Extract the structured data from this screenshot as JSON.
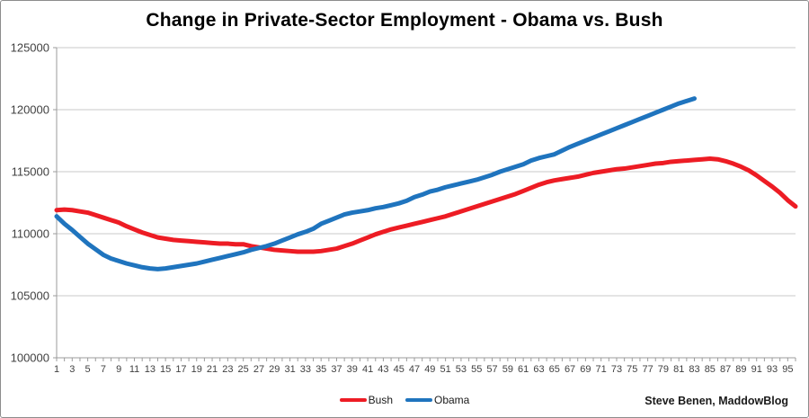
{
  "attribution": {
    "text": "Steve Benen, MaddowBlog"
  },
  "chart_data": {
    "type": "line",
    "title": "Change in Private-Sector Employment - Obama vs. Bush",
    "xlabel": "",
    "ylabel": "",
    "x_unit": "month of presidency",
    "x_tick_labels": [
      1,
      3,
      5,
      7,
      9,
      11,
      13,
      15,
      17,
      19,
      21,
      23,
      25,
      27,
      29,
      31,
      33,
      35,
      37,
      39,
      41,
      43,
      45,
      47,
      49,
      51,
      53,
      55,
      57,
      59,
      61,
      63,
      65,
      67,
      69,
      71,
      73,
      75,
      77,
      79,
      81,
      83,
      85,
      87,
      89,
      91,
      93,
      95
    ],
    "x_months_total": 96,
    "ylim": [
      100000,
      125000
    ],
    "y_ticks": [
      100000,
      105000,
      110000,
      115000,
      120000,
      125000
    ],
    "grid": true,
    "legend_position": "bottom",
    "colors": {
      "bush": "#ED1C24",
      "obama": "#1F74BE",
      "gridline": "#c9c9c9",
      "axis": "#9b9b9b",
      "tick_label": "#404040"
    },
    "legend": [
      {
        "label": "Bush",
        "color": "#ED1C24"
      },
      {
        "label": "Obama",
        "color": "#1F74BE"
      }
    ],
    "series": [
      {
        "name": "Bush",
        "color": "#ED1C24",
        "start_month": 1,
        "values": [
          111900,
          111950,
          111900,
          111800,
          111700,
          111500,
          111300,
          111100,
          110900,
          110600,
          110350,
          110100,
          109900,
          109700,
          109600,
          109500,
          109450,
          109400,
          109350,
          109300,
          109250,
          109200,
          109200,
          109150,
          109150,
          109000,
          108900,
          108800,
          108700,
          108650,
          108600,
          108550,
          108550,
          108550,
          108600,
          108700,
          108800,
          109000,
          109200,
          109450,
          109700,
          109950,
          110150,
          110350,
          110500,
          110650,
          110800,
          110950,
          111100,
          111250,
          111400,
          111600,
          111800,
          112000,
          112200,
          112400,
          112600,
          112800,
          113000,
          113200,
          113450,
          113700,
          113950,
          114150,
          114300,
          114400,
          114500,
          114600,
          114750,
          114900,
          115000,
          115100,
          115200,
          115250,
          115350,
          115450,
          115550,
          115650,
          115700,
          115800,
          115850,
          115900,
          115950,
          116000,
          116050,
          116000,
          115850,
          115650,
          115400,
          115100,
          114700,
          114250,
          113800,
          113300,
          112700,
          112200
        ]
      },
      {
        "name": "Obama",
        "color": "#1F74BE",
        "start_month": 1,
        "values": [
          111400,
          110800,
          110300,
          109750,
          109200,
          108750,
          108300,
          108000,
          107800,
          107600,
          107450,
          107300,
          107200,
          107150,
          107200,
          107300,
          107400,
          107500,
          107600,
          107750,
          107900,
          108050,
          108200,
          108350,
          108500,
          108700,
          108850,
          109000,
          109200,
          109450,
          109700,
          109950,
          110150,
          110400,
          110800,
          111050,
          111300,
          111550,
          111700,
          111800,
          111900,
          112050,
          112150,
          112300,
          112450,
          112650,
          112950,
          113150,
          113400,
          113550,
          113750,
          113900,
          114050,
          114200,
          114350,
          114550,
          114750,
          115000,
          115200,
          115400,
          115600,
          115900,
          116100,
          116250,
          116400,
          116700,
          117000,
          117250,
          117500,
          117750,
          118000,
          118250,
          118500,
          118750,
          119000,
          119250,
          119500,
          119750,
          120000,
          120250,
          120500,
          120700,
          120900
        ]
      }
    ]
  }
}
